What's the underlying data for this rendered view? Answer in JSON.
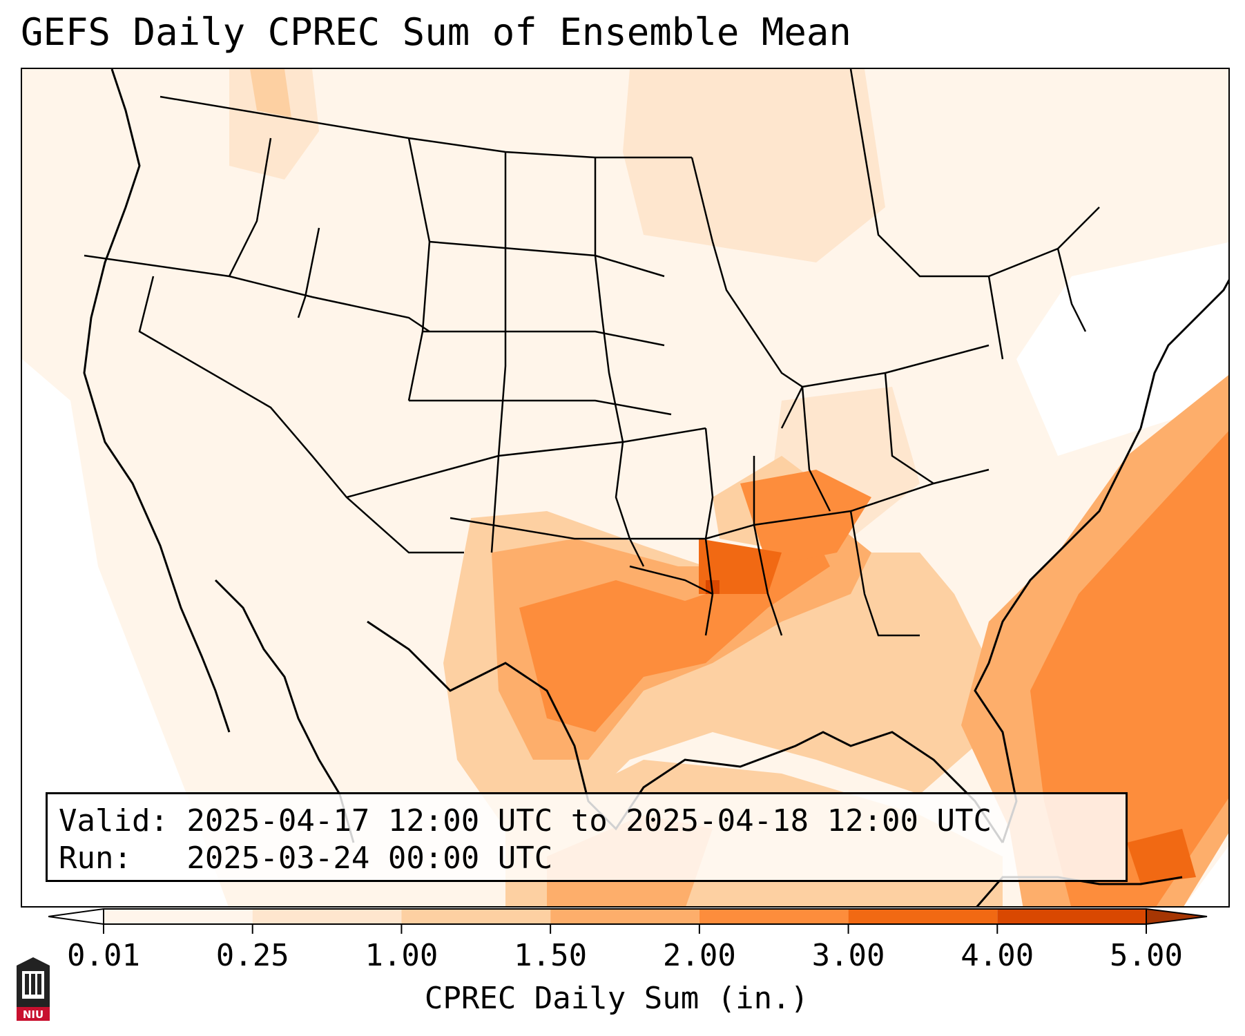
{
  "title": "GEFS Daily CPREC Sum of Ensemble Mean",
  "info": {
    "valid": "Valid: 2025-04-17 12:00 UTC to 2025-04-18 12:00 UTC",
    "run": "Run:   2025-03-24 00:00 UTC"
  },
  "colorbar": {
    "label": "CPREC Daily Sum (in.)",
    "ticks": [
      "0.01",
      "0.25",
      "1.00",
      "1.50",
      "2.00",
      "3.00",
      "4.00",
      "5.00"
    ],
    "colors": [
      "#fff5eb",
      "#fee6ce",
      "#fdd0a2",
      "#fdae6b",
      "#fd8d3c",
      "#f16913",
      "#d94801",
      "#a63603"
    ]
  },
  "logo": {
    "text": "NIU"
  }
}
